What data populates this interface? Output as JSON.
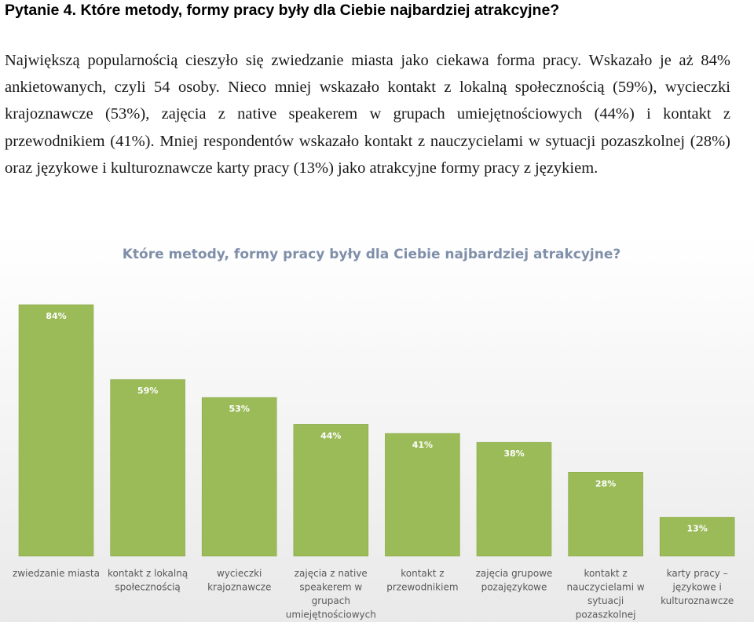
{
  "document": {
    "heading": "Pytanie 4. Które metody, formy pracy były dla Ciebie najbardziej atrakcyjne?",
    "paragraph": "Największą popularnością cieszyło się zwiedzanie miasta jako ciekawa forma pracy. Wskazało je aż 84% ankietowanych, czyli 54 osoby. Nieco mniej wskazało kontakt z lokalną społecznością (59%), wycieczki krajoznawcze (53%), zajęcia z native speakerem w grupach umiejętnościowych (44%) i kontakt z przewodnikiem (41%). Mniej respondentów wskazało kontakt z nauczycielami w sytuacji pozaszkolnej (28%) oraz językowe i kulturoznawcze karty pracy (13%) jako atrakcyjne formy pracy z językiem."
  },
  "chart_data": {
    "type": "bar",
    "title": "Które metody, formy pracy były dla Ciebie najbardziej atrakcyjne?",
    "categories": [
      [
        "zwiedzanie miasta"
      ],
      [
        "kontakt z lokalną",
        "społecznością"
      ],
      [
        "wycieczki",
        "krajoznawcze"
      ],
      [
        "zajęcia z native",
        "speakerem w",
        "grupach",
        "umiejętnościowych"
      ],
      [
        "kontakt z",
        "przewodnikiem"
      ],
      [
        "zajęcia grupowe",
        "pozajęzykowe"
      ],
      [
        "kontakt z",
        "nauczycielami w",
        "sytuacji",
        "pozaszkolnej"
      ],
      [
        "karty pracy –",
        "językowe i",
        "kulturoznawcze"
      ]
    ],
    "values": [
      84,
      59,
      53,
      44,
      41,
      38,
      28,
      13
    ],
    "data_labels": [
      "84%",
      "59%",
      "53%",
      "44%",
      "41%",
      "38%",
      "28%",
      "13%"
    ],
    "ylim": [
      0,
      100
    ],
    "grid": false,
    "legend": "none",
    "colors": {
      "bar": "#9bbb59",
      "bar_edge": "#8aaa48",
      "title": "#7f8fa9",
      "data_label": "#ffffff",
      "category_label": "#595959",
      "background_top": "#ffffff",
      "background_bottom": "#e9e9e9"
    }
  }
}
